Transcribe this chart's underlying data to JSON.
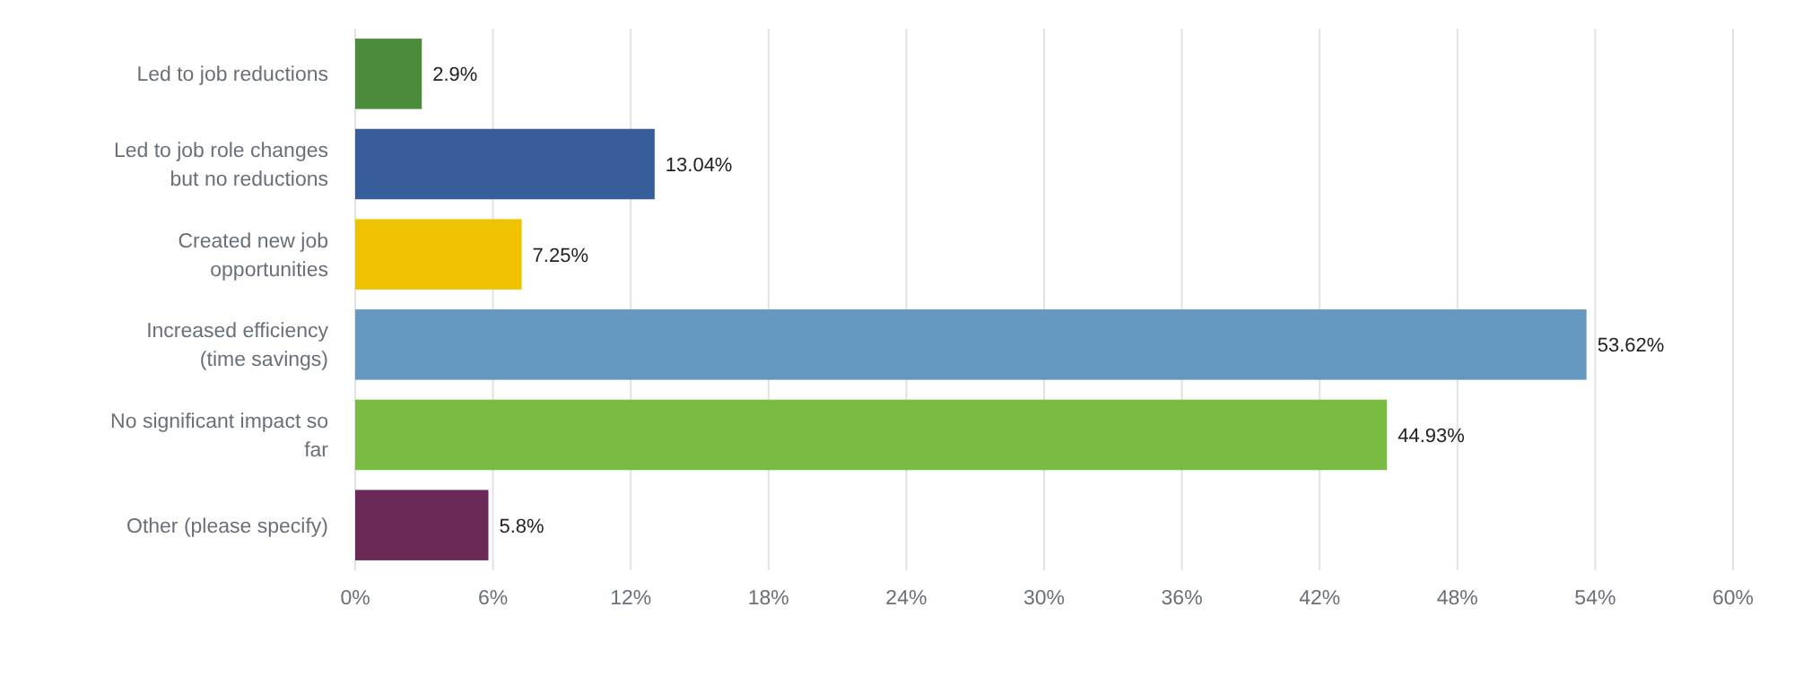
{
  "chart_data": {
    "type": "bar",
    "orientation": "horizontal",
    "categories": [
      "Led to job reductions",
      "Led to job role changes but no reductions",
      "Created new job opportunities",
      "Increased efficiency (time savings)",
      "No significant impact so far",
      "Other (please specify)"
    ],
    "values": [
      2.9,
      13.04,
      7.25,
      53.62,
      44.93,
      5.8
    ],
    "colors": [
      "#4b8b3b",
      "#385d9b",
      "#f0c300",
      "#6699c2",
      "#7abb44",
      "#6a2958"
    ],
    "value_labels": [
      "2.9%",
      "13.04%",
      "7.25%",
      "53.62%",
      "44.93%",
      "5.8%"
    ],
    "xlim": [
      0,
      60
    ],
    "xticks": [
      {
        "value": 0,
        "label": "0%"
      },
      {
        "value": 6,
        "label": "6%"
      },
      {
        "value": 12,
        "label": "12%"
      },
      {
        "value": 18,
        "label": "18%"
      },
      {
        "value": 24,
        "label": "24%"
      },
      {
        "value": 30,
        "label": "30%"
      },
      {
        "value": 36,
        "label": "36%"
      },
      {
        "value": 42,
        "label": "42%"
      },
      {
        "value": 48,
        "label": "48%"
      },
      {
        "value": 54,
        "label": "54%"
      },
      {
        "value": 60,
        "label": "60%"
      }
    ],
    "grid": "x"
  }
}
